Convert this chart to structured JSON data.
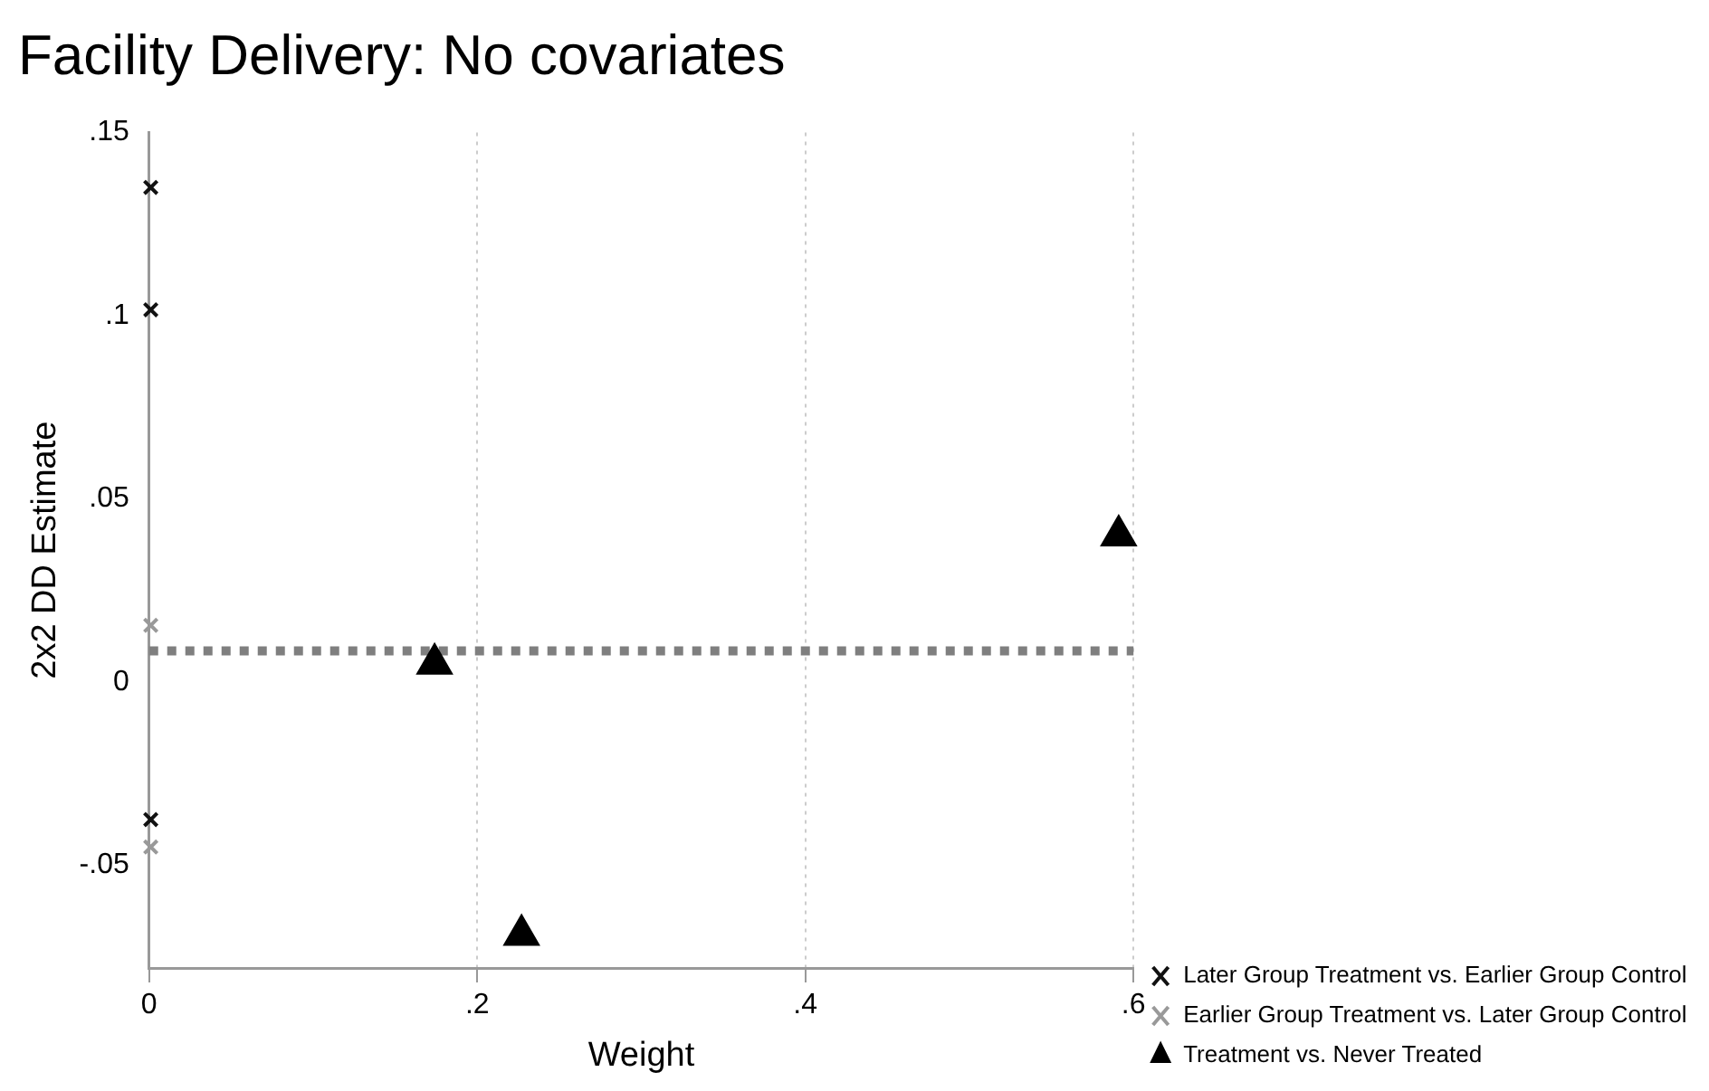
{
  "chart_data": {
    "type": "scatter",
    "title": "Facility Delivery: No covariates",
    "xlabel": "Weight",
    "ylabel": "2x2 DD Estimate",
    "series": [
      {
        "name": "Later Group Treatment vs. Earlier Group Control",
        "color": "#111111",
        "marker": "cross",
        "x": [
          0.001,
          0.001,
          0.001
        ],
        "values": [
          0.135,
          0.1016,
          -0.0375
        ]
      },
      {
        "name": "Earlier Group Treatment vs. Later Group Control",
        "color": "#999999",
        "marker": "cross",
        "x": [
          0.001,
          0.001
        ],
        "values": [
          0.0155,
          -0.045
        ]
      },
      {
        "name": "Treatment vs. Never Treated",
        "color": "#000000",
        "marker": "triangle",
        "x": [
          0.174,
          0.227,
          0.591
        ],
        "values": [
          0.005,
          -0.069,
          0.04
        ]
      }
    ],
    "xlim": [
      0,
      0.6
    ],
    "xticks": [
      0,
      {
        "value": 0.2,
        "label": ".2"
      },
      {
        "value": 0.4,
        "label": ".4"
      },
      {
        "value": 0.6,
        "label": ".6"
      }
    ],
    "ylim": [
      -0.078,
      0.15
    ],
    "yticks": [
      {
        "value": -0.05,
        "label": "-.05"
      },
      0,
      {
        "value": 0.05,
        "label": ".05"
      },
      {
        "value": 0.1,
        "label": ".1"
      },
      {
        "value": 0.15,
        "label": ".15"
      }
    ],
    "ref_lines": [
      {
        "axis": "y",
        "value": 0.0085,
        "color": "#7f7f7f",
        "line_style": "dotted"
      }
    ],
    "grid": "x",
    "legend": "right"
  }
}
